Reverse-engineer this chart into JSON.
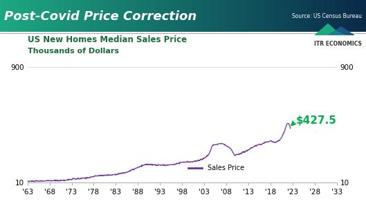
{
  "title": "Post-Covid Price Correction",
  "source": "Source: US Census Bureau",
  "subtitle1": "US New Homes Median Sales Price",
  "subtitle2": "Thousands of Dollars",
  "line_color": "#7030a0",
  "annotation_color": "#00b050",
  "annotation_text": "$427.5",
  "legend_label": "Sales Price",
  "ylim": [
    10,
    900
  ],
  "xlim": [
    1963,
    2033
  ],
  "yticks": [
    10,
    900
  ],
  "xticks": [
    1963,
    1968,
    1973,
    1978,
    1983,
    1988,
    1993,
    1998,
    2003,
    2008,
    2013,
    2018,
    2023,
    2028,
    2033
  ],
  "xtick_labels": [
    "'63",
    "'68",
    "'73",
    "'78",
    "'83",
    "'88",
    "'93",
    "'98",
    "'03",
    "'08",
    "'13",
    "'18",
    "'23",
    "'28",
    "'33"
  ],
  "last_data_year": 2022.5,
  "last_data_value": 427.5,
  "title_fontsize": 13,
  "subtitle_fontsize": 8.5,
  "annotation_fontsize": 11,
  "bg_color": "#ffffff",
  "plot_bg_color": "#ffffff",
  "header_grad_left": "#1da882",
  "header_grad_right": "#0a2a4a",
  "separator_color": "#aaaaaa",
  "tick_fontsize": 7.5
}
